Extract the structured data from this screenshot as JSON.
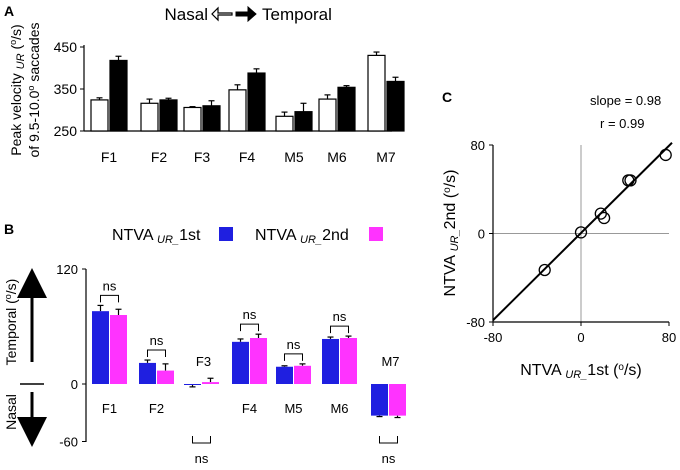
{
  "panels": {
    "A": {
      "letter": "A",
      "legend": {
        "left": "Nasal",
        "right": "Temporal"
      },
      "ylabel_line1": {
        "pre": "Peak velocity ",
        "sub": "UR",
        "post": " (",
        "sup": "o",
        "end": "/s)"
      },
      "ylabel_line2": {
        "pre": "of 9.5-10.0",
        "sup": "o",
        "post": " saccades"
      }
    },
    "B": {
      "letter": "B",
      "legend": [
        {
          "pre": "NTVA ",
          "sub": "UR_",
          "post": "1st",
          "color": "#1f1fe0"
        },
        {
          "pre": "NTVA ",
          "sub": "UR_",
          "post": "2nd",
          "color": "#ff33ff"
        }
      ],
      "arrow_up_label": {
        "pre": "Temporal (",
        "sup": "o",
        "post": "/s)"
      },
      "arrow_down_label": "Nasal"
    },
    "C": {
      "letter": "C",
      "slope_text": "slope = 0.98",
      "r_text": "r = 0.99",
      "xlabel": {
        "pre": "NTVA ",
        "sub": "UR_",
        "post": "1st (",
        "sup": "o",
        "end": "/s)"
      },
      "ylabel": {
        "pre": "NTVA ",
        "sub": "UR_",
        "post": "2nd (",
        "sup": "o",
        "end": "/s)"
      }
    }
  },
  "chart_data": [
    {
      "type": "bar",
      "panel": "A",
      "categories": [
        "F1",
        "F2",
        "F3",
        "F4",
        "M5",
        "M6",
        "M7"
      ],
      "yticks": [
        "250",
        "350",
        "450"
      ],
      "ylim": [
        250,
        450
      ],
      "series": [
        {
          "name": "Nasal",
          "color": "#ffffff",
          "values": [
            324,
            316,
            306,
            348,
            285,
            326,
            430
          ],
          "errors": [
            5,
            10,
            2,
            12,
            10,
            10,
            8
          ]
        },
        {
          "name": "Temporal",
          "color": "#000000",
          "values": [
            418,
            324,
            310,
            388,
            296,
            354,
            368
          ],
          "errors": [
            10,
            4,
            12,
            10,
            20,
            4,
            10
          ]
        }
      ]
    },
    {
      "type": "bar",
      "panel": "B",
      "categories": [
        "F1",
        "F2",
        "F3",
        "F4",
        "M5",
        "M6",
        "M7"
      ],
      "yticks": [
        "120",
        "0",
        "-60"
      ],
      "ylim": [
        -60,
        120
      ],
      "significance": [
        "ns",
        "ns",
        "ns",
        "ns",
        "ns",
        "ns",
        "ns"
      ],
      "series": [
        {
          "name": "NTVA UR_1st",
          "color": "#1f1fe0",
          "values": [
            76,
            22,
            -1,
            44,
            18,
            47,
            -33
          ],
          "errors": [
            6,
            3,
            2,
            3,
            1,
            2,
            1
          ]
        },
        {
          "name": "NTVA UR_2nd",
          "color": "#ff33ff",
          "values": [
            72,
            14,
            2,
            48,
            19,
            48,
            -33
          ],
          "errors": [
            6,
            7,
            4,
            4,
            2,
            2,
            2
          ]
        }
      ]
    },
    {
      "type": "scatter",
      "panel": "C",
      "xlim": [
        -80,
        80
      ],
      "ylim": [
        -80,
        80
      ],
      "xticks": [
        "-80",
        "0",
        "80"
      ],
      "yticks": [
        "-80",
        "0",
        "80"
      ],
      "points": [
        {
          "x": -33,
          "y": -33
        },
        {
          "x": 0,
          "y": 1
        },
        {
          "x": 18,
          "y": 18
        },
        {
          "x": 21,
          "y": 14
        },
        {
          "x": 43,
          "y": 48
        },
        {
          "x": 45,
          "y": 48
        },
        {
          "x": 77,
          "y": 71
        }
      ],
      "fit": {
        "slope": 0.98,
        "intercept": 0
      }
    }
  ]
}
